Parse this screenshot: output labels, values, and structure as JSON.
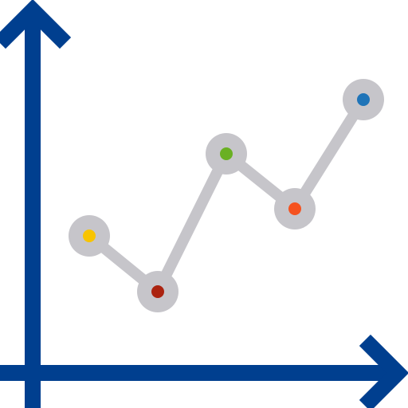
{
  "icon": {
    "name": "line-chart-icon",
    "colors": {
      "axis": "#003f8f",
      "connector": "#c6c5ca",
      "point_halo": "#c6c5ca"
    },
    "points": [
      {
        "name": "chart-point-1",
        "color": "#f8c400"
      },
      {
        "name": "chart-point-2",
        "color": "#ab2310"
      },
      {
        "name": "chart-point-3",
        "color": "#6ab023"
      },
      {
        "name": "chart-point-4",
        "color": "#f5521f"
      },
      {
        "name": "chart-point-5",
        "color": "#1f74b8"
      }
    ]
  }
}
